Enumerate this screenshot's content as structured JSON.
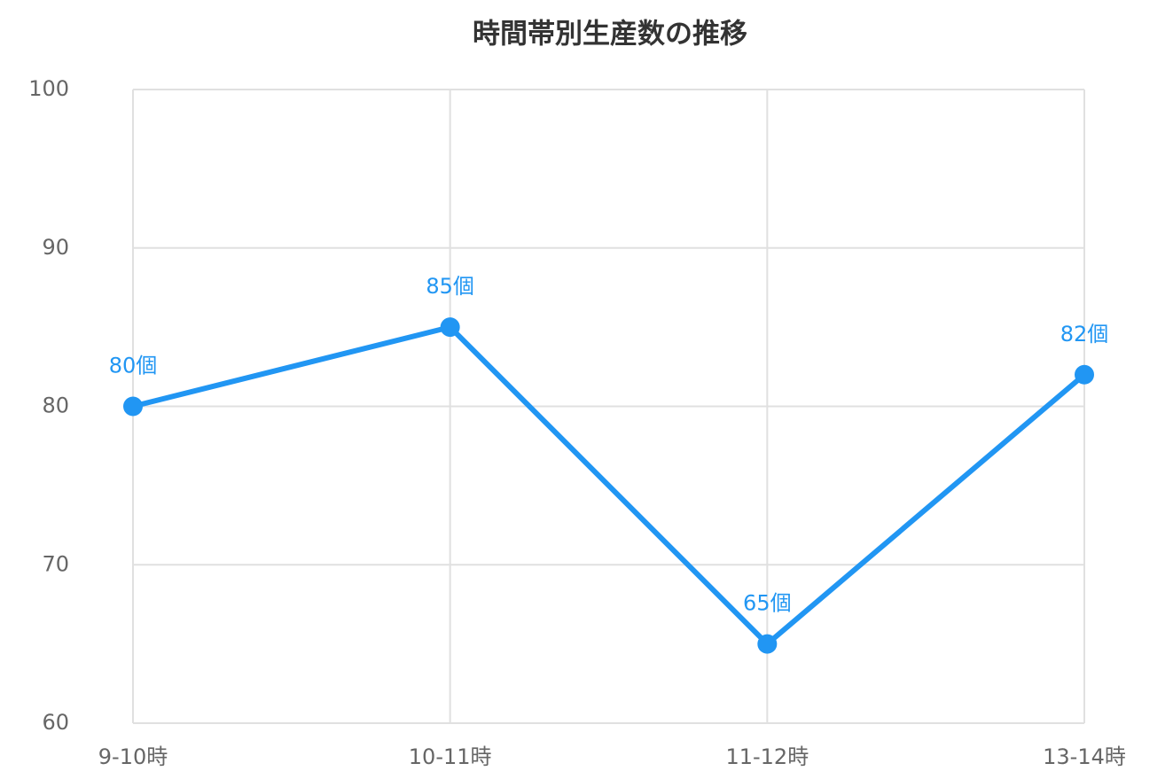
{
  "chart_data": {
    "type": "line",
    "title": "時間帯別生産数の推移",
    "categories": [
      "9-10時",
      "10-11時",
      "11-12時",
      "13-14時"
    ],
    "values": [
      80,
      85,
      65,
      82
    ],
    "value_labels": [
      "80個",
      "85個",
      "65個",
      "82個"
    ],
    "color": "#2196f3",
    "ylim": [
      60,
      100
    ],
    "yticks": [
      60,
      70,
      80,
      90,
      100
    ],
    "grid": true
  }
}
